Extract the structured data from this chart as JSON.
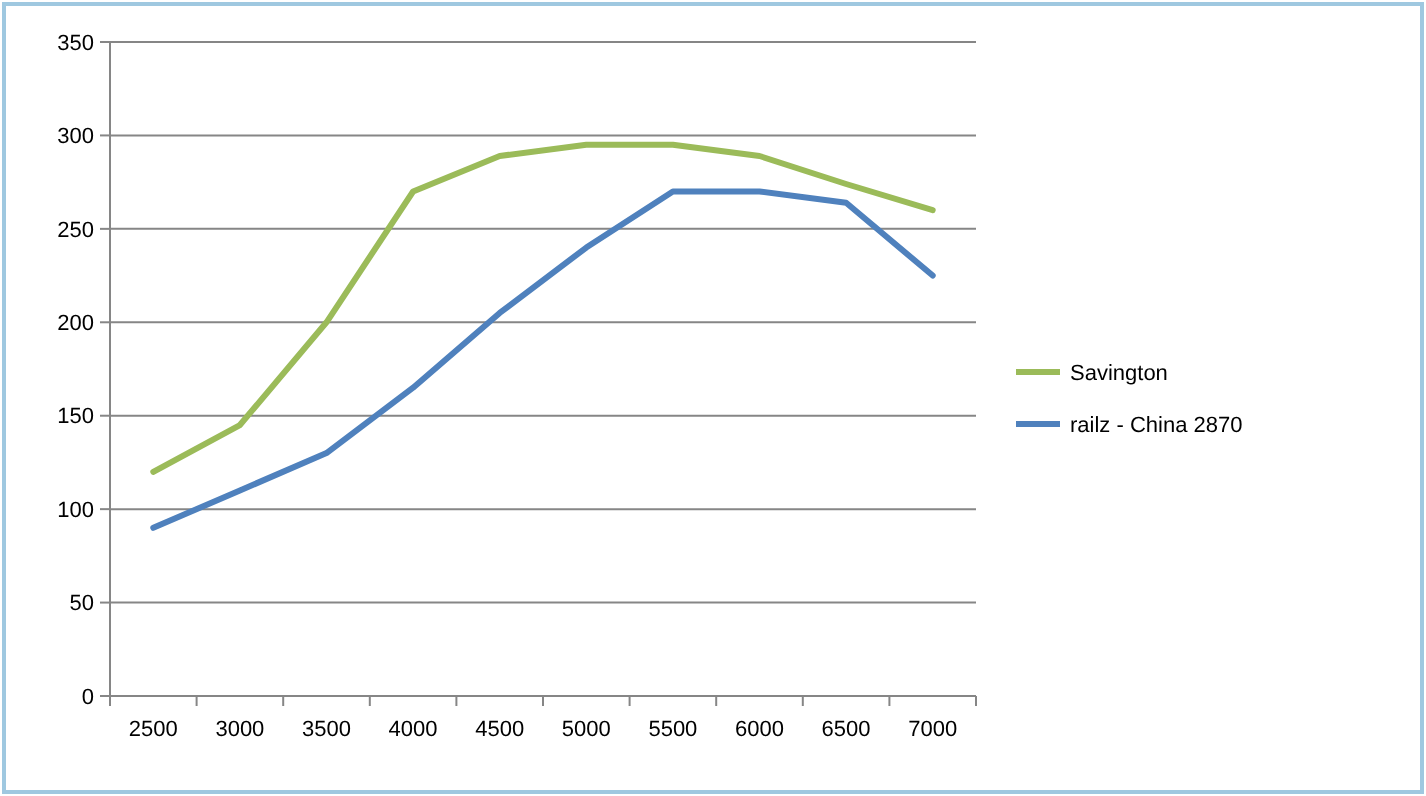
{
  "chart_data": {
    "type": "line",
    "categories": [
      "2500",
      "3000",
      "3500",
      "4000",
      "4500",
      "5000",
      "5500",
      "6000",
      "6500",
      "7000"
    ],
    "series": [
      {
        "name": "Savington",
        "color": "#9bbb59",
        "values": [
          120,
          145,
          200,
          270,
          289,
          295,
          295,
          289,
          274,
          260
        ]
      },
      {
        "name": "railz - China 2870",
        "color": "#4f81bd",
        "values": [
          90,
          110,
          130,
          165,
          205,
          240,
          270,
          270,
          264,
          225
        ]
      }
    ],
    "ylim": [
      0,
      350
    ],
    "yticks": [
      0,
      50,
      100,
      150,
      200,
      250,
      300,
      350
    ],
    "grid": "y",
    "legend": "right",
    "line_style": "solid"
  }
}
